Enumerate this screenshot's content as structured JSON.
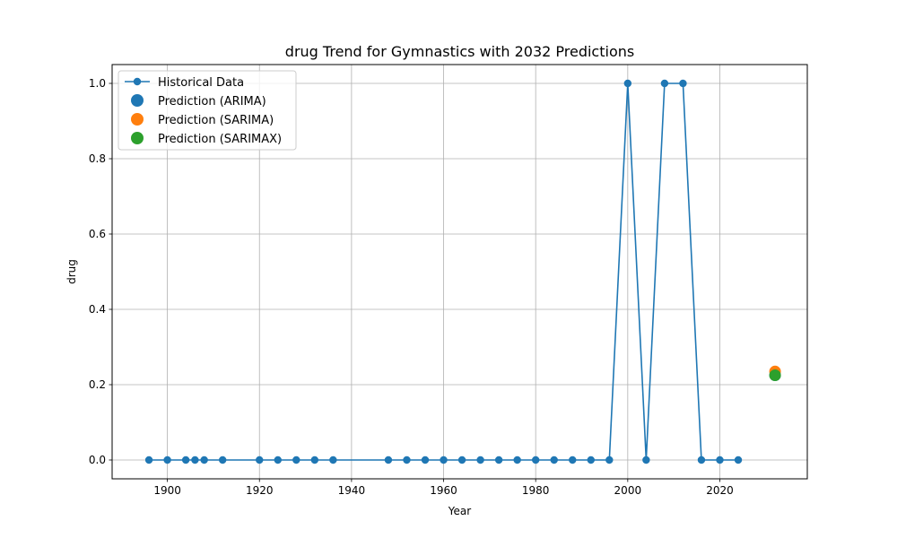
{
  "chart_data": {
    "type": "line",
    "title": "drug Trend for Gymnastics with 2032 Predictions",
    "xlabel": "Year",
    "ylabel": "drug",
    "xlim": [
      1888,
      2039
    ],
    "ylim": [
      -0.05,
      1.05
    ],
    "xticks": [
      1900,
      1920,
      1940,
      1960,
      1980,
      2000,
      2020
    ],
    "yticks": [
      0.0,
      0.2,
      0.4,
      0.6,
      0.8,
      1.0
    ],
    "xtick_labels": [
      "1900",
      "1920",
      "1940",
      "1960",
      "1980",
      "2000",
      "2020"
    ],
    "ytick_labels": [
      "0.0",
      "0.2",
      "0.4",
      "0.6",
      "0.8",
      "1.0"
    ],
    "grid": true,
    "legend_position": "top-left",
    "series": [
      {
        "name": "Historical Data",
        "kind": "line-marker",
        "color": "#1f77b4",
        "x": [
          1896,
          1900,
          1904,
          1906,
          1908,
          1912,
          1920,
          1924,
          1928,
          1932,
          1936,
          1948,
          1952,
          1956,
          1960,
          1964,
          1968,
          1972,
          1976,
          1980,
          1984,
          1988,
          1992,
          1996,
          2000,
          2004,
          2008,
          2012,
          2016,
          2020,
          2024
        ],
        "y": [
          0,
          0,
          0,
          0,
          0,
          0,
          0,
          0,
          0,
          0,
          0,
          0,
          0,
          0,
          0,
          0,
          0,
          0,
          0,
          0,
          0,
          0,
          0,
          0,
          1,
          0,
          1,
          1,
          0,
          0,
          0
        ]
      },
      {
        "name": "Prediction (ARIMA)",
        "kind": "scatter",
        "color": "#1f77b4",
        "x": [
          2032
        ],
        "y": [
          0.225
        ]
      },
      {
        "name": "Prediction (SARIMA)",
        "kind": "scatter",
        "color": "#ff7f0e",
        "x": [
          2032
        ],
        "y": [
          0.235
        ]
      },
      {
        "name": "Prediction (SARIMAX)",
        "kind": "scatter",
        "color": "#2ca02c",
        "x": [
          2032
        ],
        "y": [
          0.225
        ]
      }
    ]
  }
}
